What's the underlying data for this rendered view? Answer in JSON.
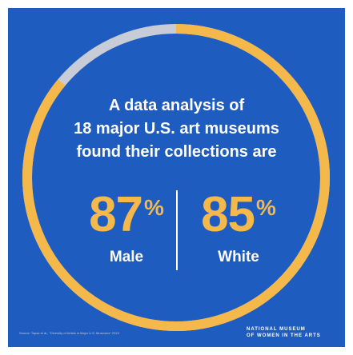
{
  "headline": {
    "line1": "A data analysis of",
    "line2": "18 major U.S. art museums",
    "line3": "found their collections are"
  },
  "stats": [
    {
      "value": "87",
      "unit": "%",
      "label": "Male"
    },
    {
      "value": "85",
      "unit": "%",
      "label": "White"
    }
  ],
  "ring_share": 0.86,
  "colors": {
    "background": "#1f5cbf",
    "accent": "#f5b84a",
    "ring_remainder": "#c7ccd6",
    "text": "#ffffff"
  },
  "source_note": "Source: Topaz et al., \"Diversity of Artists in Major U.S. Museums\" 2019",
  "logo": {
    "line1": "NATIONAL MUSEUM",
    "line2": "OF WOMEN IN THE ARTS"
  }
}
